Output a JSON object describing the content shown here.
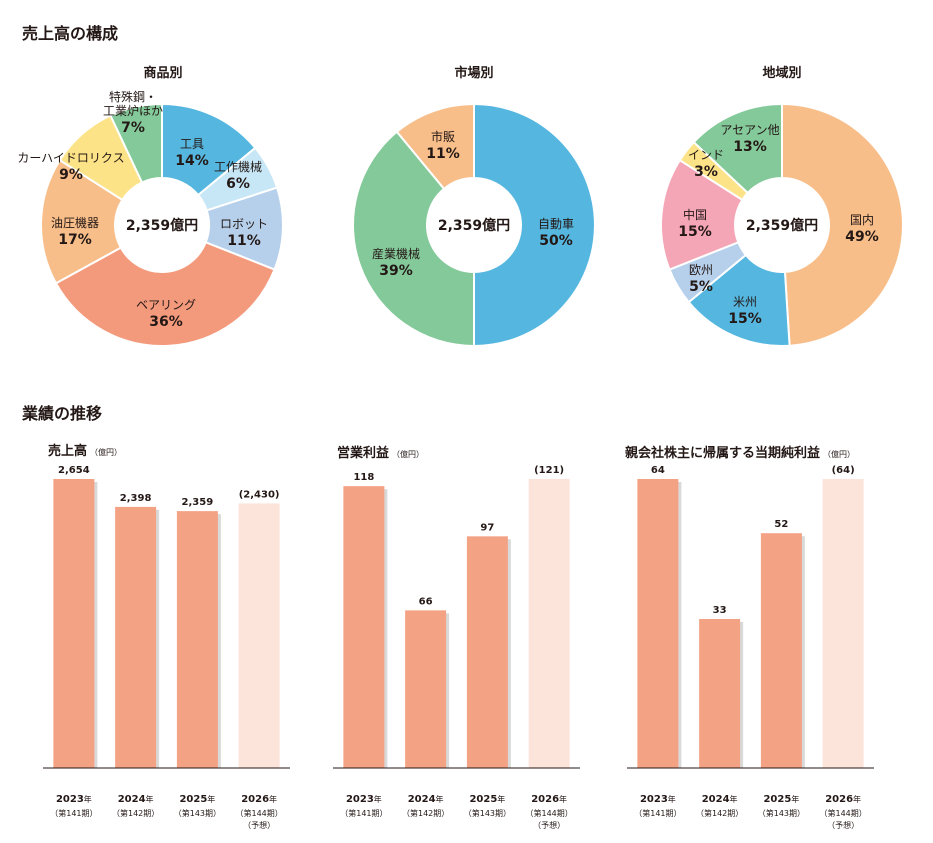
{
  "sections": {
    "composition_title": "売上高の構成",
    "performance_title": "業績の推移"
  },
  "colors": {
    "bar_actual": "#F4A284",
    "bar_forecast": "#FCE4DA"
  },
  "chart_data": [
    {
      "type": "pie",
      "title": "商品別",
      "center_label": "2,359億円",
      "slices": [
        {
          "label": "工具",
          "value": 14,
          "color": "#55B6E0"
        },
        {
          "label": "工作機械",
          "value": 6,
          "color": "#C7E7F6"
        },
        {
          "label": "ロボット",
          "value": 11,
          "color": "#B6D0EC"
        },
        {
          "label": "ベアリング",
          "value": 36,
          "color": "#F49A7C"
        },
        {
          "label": "油圧機器",
          "value": 17,
          "color": "#F8BE8A"
        },
        {
          "label": "カーハイドロリクス",
          "value": 9,
          "color": "#FCE387"
        },
        {
          "label": "特殊鋼・工業炉ほか",
          "value": 7,
          "color": "#84C99A"
        }
      ]
    },
    {
      "type": "pie",
      "title": "市場別",
      "center_label": "2,359億円",
      "slices": [
        {
          "label": "自動車",
          "value": 50,
          "color": "#55B6E0"
        },
        {
          "label": "産業機械",
          "value": 39,
          "color": "#84C99A"
        },
        {
          "label": "市販",
          "value": 11,
          "color": "#F8BE8A"
        }
      ]
    },
    {
      "type": "pie",
      "title": "地域別",
      "center_label": "2,359億円",
      "slices": [
        {
          "label": "国内",
          "value": 49,
          "color": "#F8BE8A"
        },
        {
          "label": "米州",
          "value": 15,
          "color": "#55B6E0"
        },
        {
          "label": "欧州",
          "value": 5,
          "color": "#B6D0EC"
        },
        {
          "label": "中国",
          "value": 15,
          "color": "#F4A6B6"
        },
        {
          "label": "インド",
          "value": 3,
          "color": "#FCE387"
        },
        {
          "label": "アセアン他",
          "value": 13,
          "color": "#84C99A"
        }
      ]
    },
    {
      "type": "bar",
      "title": "売上高",
      "unit": "（億円）",
      "categories": [
        {
          "year": "2023",
          "suffix": "年",
          "period": "（第141期）",
          "note": ""
        },
        {
          "year": "2024",
          "suffix": "年",
          "period": "（第142期）",
          "note": ""
        },
        {
          "year": "2025",
          "suffix": "年",
          "period": "（第143期）",
          "note": ""
        },
        {
          "year": "2026",
          "suffix": "年",
          "period": "（第144期）",
          "note": "（予想）"
        }
      ],
      "values": [
        2654,
        2398,
        2359,
        2430
      ],
      "labels": [
        "2,654",
        "2,398",
        "2,359",
        "(2,430)"
      ],
      "forecast": [
        false,
        false,
        false,
        true
      ],
      "ylim": [
        0,
        2654
      ]
    },
    {
      "type": "bar",
      "title": "営業利益",
      "unit": "（億円）",
      "categories": [
        {
          "year": "2023",
          "suffix": "年",
          "period": "（第141期）",
          "note": ""
        },
        {
          "year": "2024",
          "suffix": "年",
          "period": "（第142期）",
          "note": ""
        },
        {
          "year": "2025",
          "suffix": "年",
          "period": "（第143期）",
          "note": ""
        },
        {
          "year": "2026",
          "suffix": "年",
          "period": "（第144期）",
          "note": "（予想）"
        }
      ],
      "values": [
        118,
        66,
        97,
        121
      ],
      "labels": [
        "118",
        "66",
        "97",
        "(121)"
      ],
      "forecast": [
        false,
        false,
        false,
        true
      ],
      "ylim": [
        0,
        121
      ]
    },
    {
      "type": "bar",
      "title": "親会社株主に帰属する当期純利益",
      "unit": "（億円）",
      "categories": [
        {
          "year": "2023",
          "suffix": "年",
          "period": "（第141期）",
          "note": ""
        },
        {
          "year": "2024",
          "suffix": "年",
          "period": "（第142期）",
          "note": ""
        },
        {
          "year": "2025",
          "suffix": "年",
          "period": "（第143期）",
          "note": ""
        },
        {
          "year": "2026",
          "suffix": "年",
          "period": "（第144期）",
          "note": "（予想）"
        }
      ],
      "values": [
        64,
        33,
        52,
        64
      ],
      "labels": [
        "64",
        "33",
        "52",
        "(64)"
      ],
      "forecast": [
        false,
        false,
        false,
        true
      ],
      "ylim": [
        0,
        64
      ]
    }
  ]
}
